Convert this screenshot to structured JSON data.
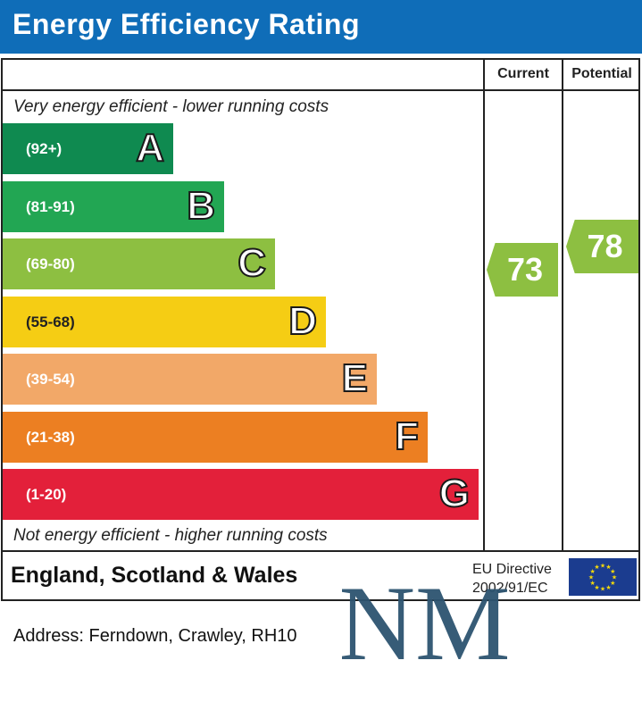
{
  "header": {
    "title": "Energy Efficiency Rating"
  },
  "columns": {
    "current": "Current",
    "potential": "Potential"
  },
  "notes": {
    "top": "Very energy efficient - lower running costs",
    "bottom": "Not energy efficient - higher running costs"
  },
  "colors": {
    "header_bg": "#0f6db8",
    "A": "#0f8a50",
    "B": "#22a653",
    "C": "#8dbf41",
    "D": "#f5cd14",
    "E": "#f2a868",
    "F": "#ec7f22",
    "G": "#e3203a",
    "logo": "#2d5470",
    "eu_flag": "#1b3c8f",
    "eu_star": "#f5d90a"
  },
  "chart_data": {
    "type": "bar",
    "title": "Energy Efficiency Rating",
    "categories": [
      "A",
      "B",
      "C",
      "D",
      "E",
      "F",
      "G"
    ],
    "ranges": [
      "(92+)",
      "(81-91)",
      "(69-80)",
      "(55-68)",
      "(39-54)",
      "(21-38)",
      "(1-20)"
    ],
    "values": [
      1,
      2,
      3,
      4,
      5,
      6,
      7
    ],
    "current": {
      "value": "73",
      "band": "C"
    },
    "potential": {
      "value": "78",
      "band": "C"
    }
  },
  "footer": {
    "region": "England, Scotland & Wales",
    "directive_line1": "EU Directive",
    "directive_line2": "2002/91/EC"
  },
  "address": "Address: Ferndown, Crawley, RH10",
  "watermark": {
    "text": "NM"
  }
}
